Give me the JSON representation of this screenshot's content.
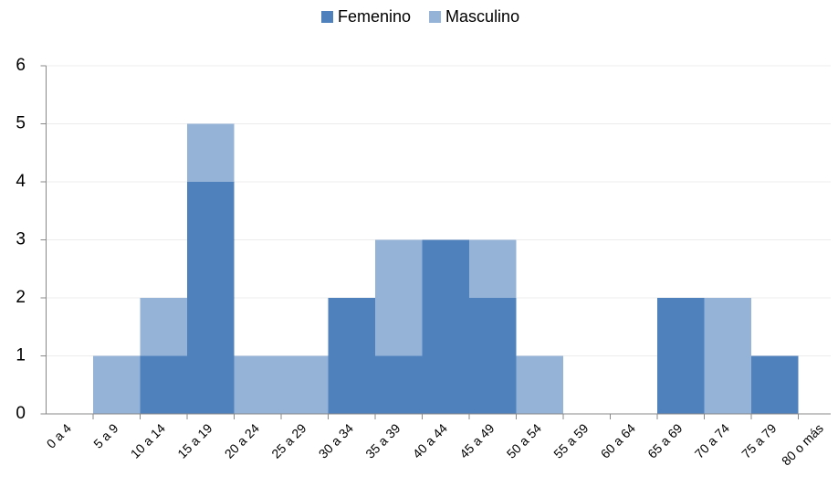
{
  "chart_data": {
    "type": "bar",
    "stacked": true,
    "categories": [
      "0 a 4",
      "5 a 9",
      "10 a 14",
      "15 a 19",
      "20 a 24",
      "25 a 29",
      "30 a 34",
      "35 a 39",
      "40 a 44",
      "45 a 49",
      "50 a 54",
      "55 a 59",
      "60 a 64",
      "65 a 69",
      "70 a 74",
      "75 a 79",
      "80 o más"
    ],
    "series": [
      {
        "name": "Femenino",
        "color": "#4f81bd",
        "values": [
          0,
          0,
          1,
          4,
          0,
          0,
          2,
          1,
          3,
          2,
          0,
          0,
          0,
          2,
          0,
          1,
          0
        ]
      },
      {
        "name": "Masculino",
        "color": "#95b3d7",
        "values": [
          0,
          1,
          1,
          1,
          1,
          1,
          0,
          2,
          0,
          1,
          1,
          0,
          0,
          0,
          2,
          0,
          0
        ]
      }
    ],
    "ylim": [
      0,
      6
    ],
    "yticks": [
      0,
      1,
      2,
      3,
      4,
      5,
      6
    ],
    "grid": true,
    "legend": "top"
  }
}
